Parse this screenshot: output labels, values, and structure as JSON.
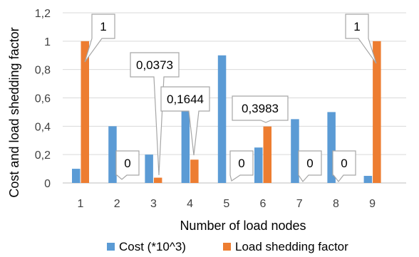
{
  "chart_data": {
    "type": "bar",
    "categories": [
      "1",
      "2",
      "3",
      "4",
      "5",
      "6",
      "7",
      "8",
      "9"
    ],
    "series": [
      {
        "name": "Cost (*10^3)",
        "color": "#5B9BD5",
        "values": [
          0.1,
          0.4,
          0.2,
          0.52,
          0.9,
          0.25,
          0.45,
          0.5,
          0.05
        ]
      },
      {
        "name": "Load shedding factor",
        "color": "#ED7D31",
        "values": [
          1,
          0,
          0.0373,
          0.1644,
          0,
          0.3983,
          0,
          0,
          1
        ]
      }
    ],
    "data_labels": [
      "1",
      "0",
      "0,0373",
      "0,1644",
      "0",
      "0,3983",
      "0",
      "0",
      "1"
    ],
    "xlabel": "Number of load nodes",
    "ylabel": "Cost and load shedding factor",
    "ylim": [
      0,
      1.2
    ],
    "yticks": [
      0,
      0.2,
      0.4,
      0.6,
      0.8,
      1,
      1.2
    ],
    "ytick_labels": [
      "0",
      "0,2",
      "0,4",
      "0,6",
      "0,8",
      "1",
      "1,2"
    ],
    "grid": true,
    "legend_position": "bottom"
  }
}
